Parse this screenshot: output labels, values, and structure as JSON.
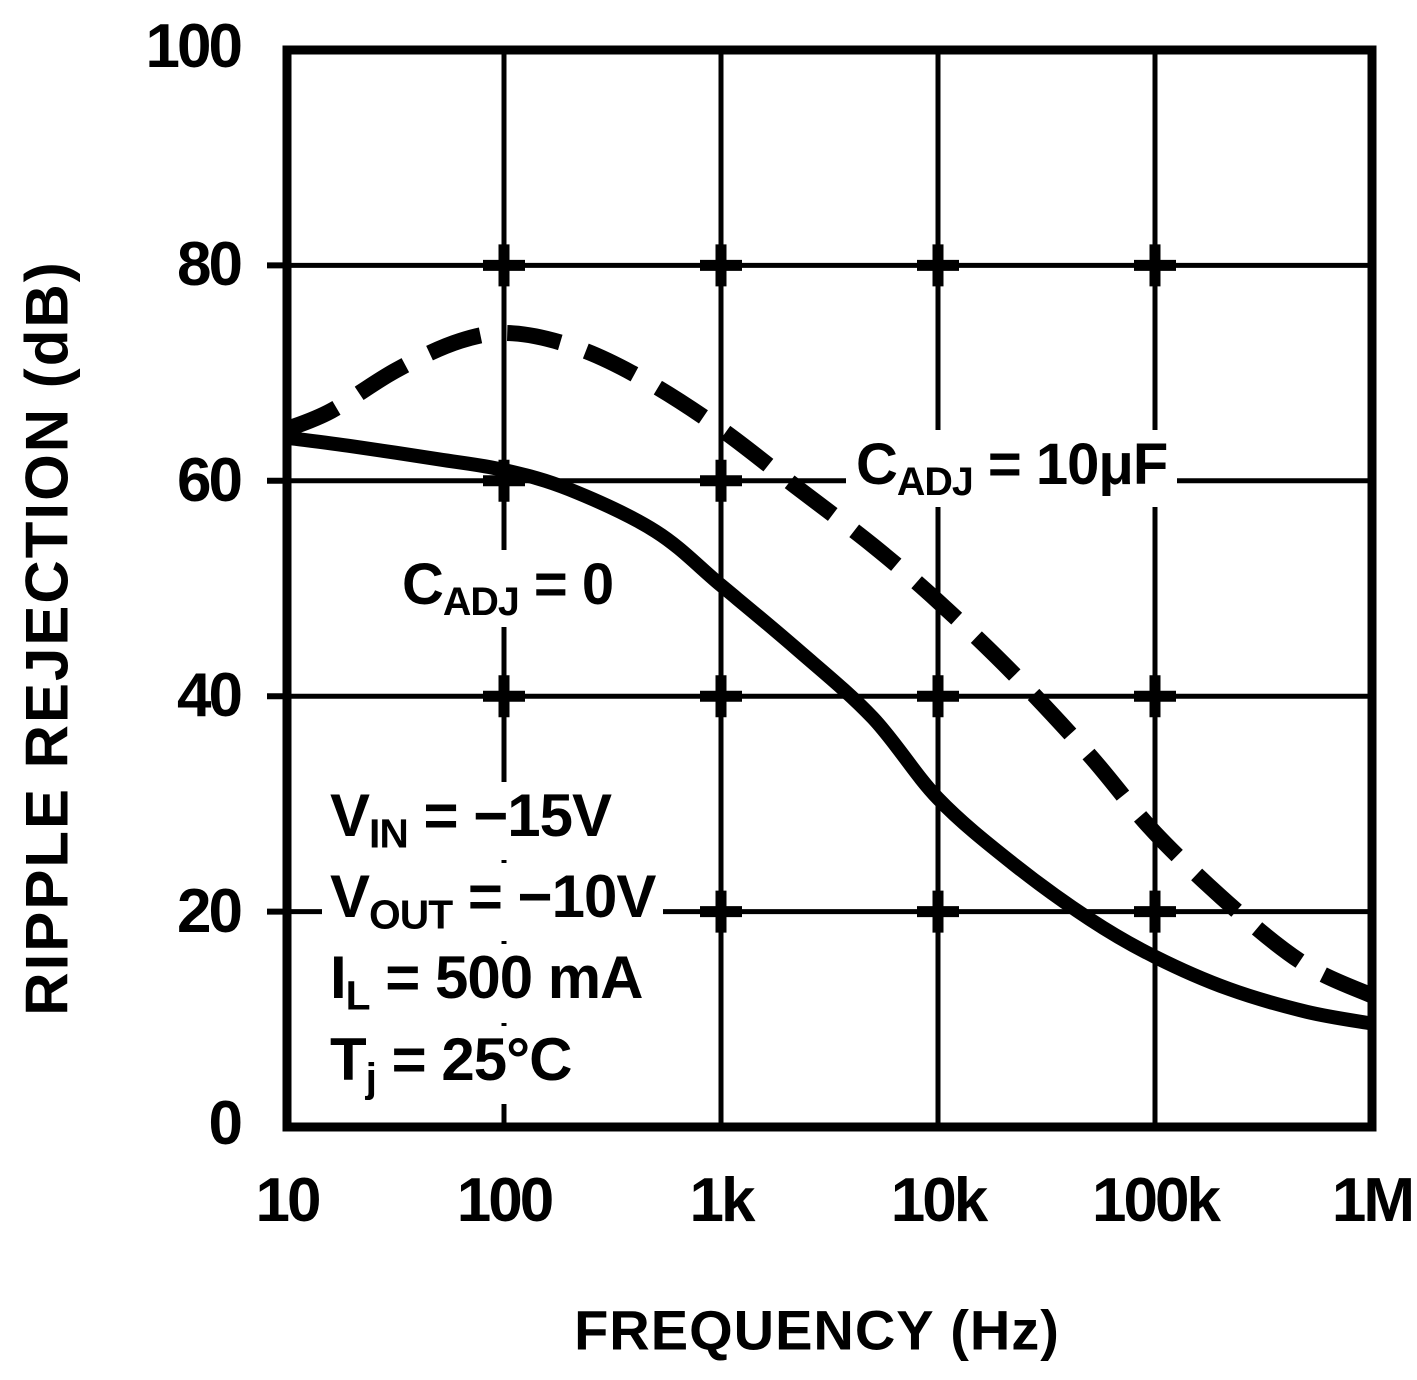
{
  "chart_data": {
    "type": "line",
    "title": "",
    "xlabel": "FREQUENCY (Hz)",
    "ylabel": "RIPPLE REJECTION (dB)",
    "x_scale": "log",
    "xlim": [
      10,
      1000000
    ],
    "ylim": [
      0,
      100
    ],
    "x_tick_labels": [
      "10",
      "100",
      "1k",
      "10k",
      "100k",
      "1M"
    ],
    "y_tick_labels": [
      "0",
      "20",
      "40",
      "60",
      "80",
      "100"
    ],
    "grid": true,
    "legend_position": "inline-labels",
    "line_color": "#000000",
    "background_color": "#ffffff",
    "series": [
      {
        "name": "CADJ = 0",
        "line_style": "solid",
        "color": "#000000",
        "label": {
          "base": "C",
          "sub": "ADJ",
          "rest": " = 0"
        },
        "points": [
          [
            10,
            64
          ],
          [
            20,
            63.2
          ],
          [
            50,
            62
          ],
          [
            100,
            61
          ],
          [
            200,
            59.2
          ],
          [
            500,
            55.3
          ],
          [
            1000,
            50.3
          ],
          [
            2200,
            44.5
          ],
          [
            5000,
            38
          ],
          [
            10000,
            30.5
          ],
          [
            22000,
            24.5
          ],
          [
            50000,
            19.3
          ],
          [
            100000,
            15.8
          ],
          [
            220000,
            12.8
          ],
          [
            500000,
            10.7
          ],
          [
            1000000,
            9.6
          ]
        ]
      },
      {
        "name": "CADJ = 10uF",
        "line_style": "dashed",
        "color": "#000000",
        "label": {
          "base": "C",
          "sub": "ADJ",
          "rest": " = 10μF"
        },
        "points": [
          [
            10,
            64.8
          ],
          [
            16,
            66.5
          ],
          [
            32,
            70.3
          ],
          [
            63,
            73
          ],
          [
            110,
            73.7
          ],
          [
            220,
            72.3
          ],
          [
            450,
            69.3
          ],
          [
            1000,
            64.8
          ],
          [
            2200,
            59.5
          ],
          [
            5000,
            54
          ],
          [
            10000,
            48.8
          ],
          [
            22000,
            42.2
          ],
          [
            50000,
            34.5
          ],
          [
            100000,
            27.3
          ],
          [
            240000,
            20
          ],
          [
            500000,
            15
          ],
          [
            1000000,
            12.2
          ]
        ]
      }
    ],
    "annotations": [
      {
        "base": "V",
        "sub": "IN",
        "rest": " = −15V"
      },
      {
        "base": "V",
        "sub": "OUT",
        "rest": " = −10V"
      },
      {
        "base": "I",
        "sub": "L",
        "rest": " = 500 mA"
      },
      {
        "base": "T",
        "sub": "j",
        "rest": " = 25°C"
      }
    ]
  },
  "colors": {
    "ink": "#000000",
    "background": "#ffffff"
  }
}
